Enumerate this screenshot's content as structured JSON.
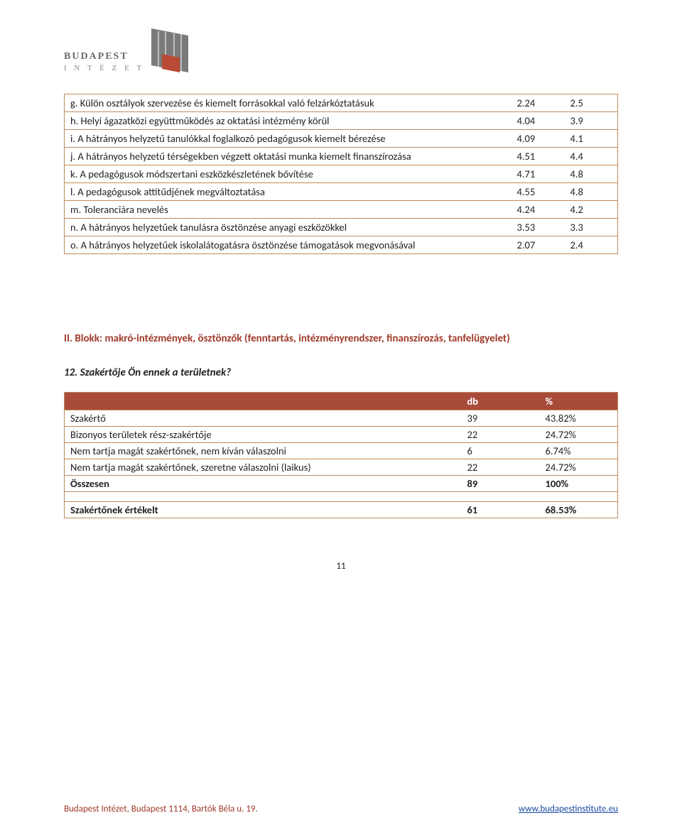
{
  "logo": {
    "line1": "BUDAPEST",
    "line2": "I N T É Z E T"
  },
  "table1": {
    "border_color": "#c08a5a",
    "rows": [
      {
        "label": "g. Külön osztályok szervezése és kiemelt forrásokkal való felzárkóztatásuk",
        "v1": "2.24",
        "v2": "2.5"
      },
      {
        "label": "h. Helyi ágazatközi együttműködés az oktatási intézmény körül",
        "v1": "4.04",
        "v2": "3.9"
      },
      {
        "label": "i. A hátrányos helyzetű tanulókkal foglalkozó pedagógusok kiemelt bérezése",
        "v1": "4.09",
        "v2": "4.1"
      },
      {
        "label": "j. A hátrányos helyzetű térségekben végzett oktatási munka kiemelt finanszírozása",
        "v1": "4.51",
        "v2": "4.4"
      },
      {
        "label": "k. A pedagógusok módszertani eszközkészletének bővítése",
        "v1": "4.71",
        "v2": "4.8"
      },
      {
        "label": "l. A pedagógusok attitűdjének megváltoztatása",
        "v1": "4.55",
        "v2": "4.8"
      },
      {
        "label": "m. Toleranciára nevelés",
        "v1": "4.24",
        "v2": "4.2"
      },
      {
        "label": "n. A hátrányos helyzetűek tanulásra ösztönzése anyagi eszközökkel",
        "v1": "3.53",
        "v2": "3.3"
      },
      {
        "label": "o. A hátrányos helyzetűek iskolalátogatásra ösztönzése támogatások megvonásával",
        "v1": "2.07",
        "v2": "2.4"
      }
    ]
  },
  "block_heading": "II. Blokk: makró-intézmények, ösztönzők (fenntartás, intézményrendszer, finanszírozás, tanfelügyelet)",
  "question12": "12. Szakértője Ön ennek a területnek?",
  "table2": {
    "header_bg": "#a84b3a",
    "border_color": "#c08a5a",
    "columns": [
      "",
      "db",
      "%"
    ],
    "rows": [
      {
        "label": "Szakértő",
        "db": "39",
        "pct": "43.82%",
        "bold": false
      },
      {
        "label": "Bizonyos területek rész-szakértője",
        "db": "22",
        "pct": "24.72%",
        "bold": false
      },
      {
        "label": "Nem tartja magát szakértőnek, nem kíván válaszolni",
        "db": "6",
        "pct": "6.74%",
        "bold": false
      },
      {
        "label": "Nem tartja magát szakértőnek, szeretne válaszolni (laikus)",
        "db": "22",
        "pct": "24.72%",
        "bold": false
      },
      {
        "label": "Összesen",
        "db": "89",
        "pct": "100%",
        "bold": true
      }
    ],
    "summary": {
      "label": "Szakértőnek értékelt",
      "db": "61",
      "pct": "68.53%"
    }
  },
  "page_number": "11",
  "footer": {
    "address": "Budapest Intézet, Budapest 1114,  Bartók Béla u. 19.",
    "url": "www.budapestinstitute.eu"
  }
}
